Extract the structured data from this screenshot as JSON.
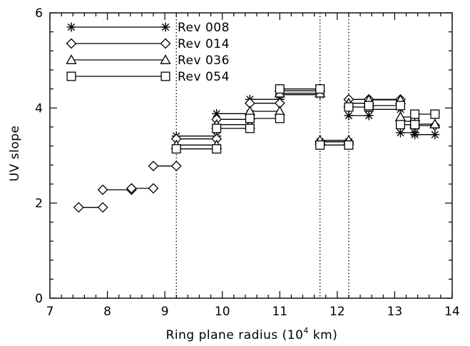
{
  "chart_data": {
    "type": "scatter",
    "title": "",
    "xlabel": "Ring plane radius (10",
    "xlabel_sup": "4",
    "xlabel_tail": " km)",
    "ylabel": "UV slope",
    "xlim": [
      7,
      14
    ],
    "ylim": [
      0,
      6
    ],
    "x_ticks": [
      7,
      8,
      9,
      10,
      11,
      12,
      13,
      14
    ],
    "y_ticks": [
      0,
      2,
      4,
      6
    ],
    "x_tick_labels": [
      "7",
      "8",
      "9",
      "10",
      "11",
      "12",
      "13",
      "14"
    ],
    "y_tick_labels": [
      "0",
      "2",
      "4",
      "6"
    ],
    "grid": false,
    "legend_position": "top-left",
    "vlines": [
      9.2,
      11.7,
      12.2
    ],
    "series": [
      {
        "name": "Rev 008",
        "marker": "asterisk",
        "segments": [
          {
            "x": [
              9.2,
              9.9
            ],
            "y": 3.41
          },
          {
            "x": [
              9.9,
              10.48
            ],
            "y": 3.88
          },
          {
            "x": [
              10.48,
              11.0
            ],
            "y": 4.18
          },
          {
            "x": [
              11.0,
              11.7
            ],
            "y": 4.28
          },
          {
            "x": [
              11.7,
              12.2
            ],
            "y": 3.29
          },
          {
            "x": [
              12.2,
              12.55
            ],
            "y": 3.84
          },
          {
            "x": [
              12.55,
              13.1
            ],
            "y": 3.97
          },
          {
            "x": [
              13.1,
              13.35
            ],
            "y": 3.48
          },
          {
            "x": [
              13.35,
              13.7
            ],
            "y": 3.44
          }
        ]
      },
      {
        "name": "Rev 014",
        "marker": "diamond",
        "segments": [
          {
            "x": [
              7.5,
              7.92
            ],
            "y": 1.91
          },
          {
            "x": [
              7.92,
              8.42
            ],
            "y": 2.28
          },
          {
            "x": [
              8.42,
              8.8
            ],
            "y": 2.31
          },
          {
            "x": [
              8.8,
              9.2
            ],
            "y": 2.78
          },
          {
            "x": [
              9.2,
              9.9
            ],
            "y": 3.35
          },
          {
            "x": [
              9.9,
              10.48
            ],
            "y": 3.76
          },
          {
            "x": [
              10.48,
              11.0
            ],
            "y": 4.1
          },
          {
            "x": [
              11.0,
              11.7
            ],
            "y": 4.36
          },
          {
            "x": [
              11.7,
              12.2
            ],
            "y": 3.29
          },
          {
            "x": [
              12.2,
              12.55
            ],
            "y": 4.18
          },
          {
            "x": [
              12.55,
              13.1
            ],
            "y": 4.18
          },
          {
            "x": [
              13.1,
              13.35
            ],
            "y": 3.72
          },
          {
            "x": [
              13.35,
              13.7
            ],
            "y": 3.63
          }
        ]
      },
      {
        "name": "Rev 036",
        "marker": "triangle",
        "segments": [
          {
            "x": [
              9.2,
              9.9
            ],
            "y": 3.22
          },
          {
            "x": [
              9.9,
              10.48
            ],
            "y": 3.65
          },
          {
            "x": [
              10.48,
              11.0
            ],
            "y": 3.93
          },
          {
            "x": [
              11.0,
              11.7
            ],
            "y": 4.31
          },
          {
            "x": [
              11.7,
              12.2
            ],
            "y": 3.32
          },
          {
            "x": [
              12.2,
              12.55
            ],
            "y": 4.1
          },
          {
            "x": [
              12.55,
              13.1
            ],
            "y": 4.17
          },
          {
            "x": [
              13.1,
              13.35
            ],
            "y": 3.81
          },
          {
            "x": [
              13.35,
              13.7
            ],
            "y": 3.66
          }
        ]
      },
      {
        "name": "Rev 054",
        "marker": "square",
        "segments": [
          {
            "x": [
              9.2,
              9.9
            ],
            "y": 3.14
          },
          {
            "x": [
              9.9,
              10.48
            ],
            "y": 3.57
          },
          {
            "x": [
              10.48,
              11.0
            ],
            "y": 3.78
          },
          {
            "x": [
              11.0,
              11.7
            ],
            "y": 4.4
          },
          {
            "x": [
              11.7,
              12.2
            ],
            "y": 3.22
          },
          {
            "x": [
              12.2,
              12.55
            ],
            "y": 4.02
          },
          {
            "x": [
              12.55,
              13.1
            ],
            "y": 4.05
          },
          {
            "x": [
              13.1,
              13.35
            ],
            "y": 3.65
          },
          {
            "x": [
              13.35,
              13.7
            ],
            "y": 3.87
          }
        ]
      }
    ]
  }
}
